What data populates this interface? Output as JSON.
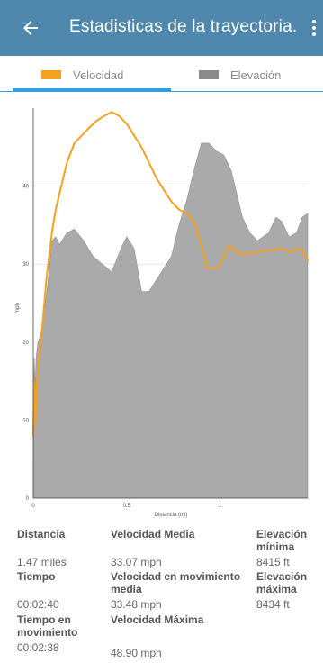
{
  "header": {
    "title": "Estadisticas de la trayectoria."
  },
  "tabs": [
    {
      "label": "Velocidad",
      "color": "#f5a020",
      "selected": true
    },
    {
      "label": "Elevación",
      "color": "#8a8a8a",
      "selected": false
    }
  ],
  "colors": {
    "toolbar": "#4f88ac",
    "accent": "#2f9fe0",
    "speed_line": "#f5a020",
    "elevation_fill": "#aaaaaa"
  },
  "chart_data": {
    "type": "area",
    "xlabel": "Distancia (mi)",
    "ylabel": "mph",
    "xlim": [
      0,
      1.47
    ],
    "ylim": [
      0,
      50
    ],
    "x_ticks": [
      0,
      0.5,
      1
    ],
    "y_ticks": [
      0,
      10,
      20,
      30,
      40
    ],
    "grid": true,
    "series": [
      {
        "name": "Velocidad",
        "style": "line",
        "x": [
          0.0,
          0.005,
          0.01,
          0.015,
          0.025,
          0.045,
          0.07,
          0.1,
          0.12,
          0.15,
          0.18,
          0.22,
          0.26,
          0.3,
          0.34,
          0.38,
          0.42,
          0.46,
          0.5,
          0.54,
          0.58,
          0.62,
          0.66,
          0.7,
          0.74,
          0.78,
          0.82,
          0.86,
          0.88,
          0.9,
          0.93,
          0.96,
          0.99,
          1.02,
          1.05,
          1.09,
          1.13,
          1.17,
          1.21,
          1.25,
          1.29,
          1.33,
          1.37,
          1.41,
          1.44,
          1.47
        ],
        "y": [
          8,
          15,
          9,
          12,
          17,
          21,
          28,
          34,
          37,
          40,
          43,
          45.5,
          46.5,
          47.5,
          48.4,
          49,
          49.5,
          49,
          48,
          46.5,
          45,
          43,
          41,
          39.5,
          38,
          37,
          36.5,
          35.5,
          34,
          32.5,
          29.5,
          29.5,
          29.5,
          31,
          32.5,
          31.5,
          31.2,
          31.5,
          31.5,
          31.8,
          31.8,
          32,
          31.5,
          32,
          31.8,
          30.5
        ]
      },
      {
        "name": "Elevación",
        "style": "area",
        "x": [
          0.0,
          0.005,
          0.01,
          0.015,
          0.025,
          0.04,
          0.06,
          0.08,
          0.1,
          0.12,
          0.14,
          0.18,
          0.22,
          0.27,
          0.32,
          0.37,
          0.42,
          0.47,
          0.5,
          0.54,
          0.58,
          0.62,
          0.66,
          0.7,
          0.74,
          0.78,
          0.82,
          0.86,
          0.9,
          0.94,
          0.98,
          1.02,
          1.06,
          1.09,
          1.12,
          1.16,
          1.2,
          1.23,
          1.26,
          1.3,
          1.33,
          1.37,
          1.41,
          1.44,
          1.47
        ],
        "y": [
          0,
          18,
          14,
          18,
          20,
          21,
          24,
          28,
          33,
          33.5,
          32.5,
          34,
          34.5,
          33,
          31,
          30,
          29,
          32,
          33.5,
          32,
          26.5,
          26.5,
          28,
          29.5,
          31,
          35,
          38,
          42,
          45.5,
          45.5,
          44.5,
          44,
          42,
          39,
          36,
          34,
          33,
          33.5,
          34,
          36,
          35.5,
          33.5,
          34,
          36,
          36.5
        ]
      }
    ]
  },
  "stats": {
    "distancia_label": "Distancia",
    "distancia_value": "1.47 miles",
    "velocidad_media_label": "Velocidad Media",
    "velocidad_media_value": "33.07 mph",
    "elevacion_minima_label_1": "Elevación",
    "elevacion_minima_label_2": "mínima",
    "elevacion_minima_value": "8415 ft",
    "tiempo_label": "Tiempo",
    "tiempo_value": "00:02:40",
    "vel_mov_media_label_1": "Velocidad en movimiento",
    "vel_mov_media_label_2": "media",
    "vel_mov_media_value": "33.48 mph",
    "elevacion_maxima_label_1": "Elevación",
    "elevacion_maxima_label_2": "máxima",
    "elevacion_maxima_value": "8434 ft",
    "tiempo_mov_label_1": "Tiempo en",
    "tiempo_mov_label_2": "movimiento",
    "tiempo_mov_value": "00:02:38",
    "velocidad_maxima_label": "Velocidad Máxima",
    "velocidad_maxima_value": "48.90 mph"
  }
}
